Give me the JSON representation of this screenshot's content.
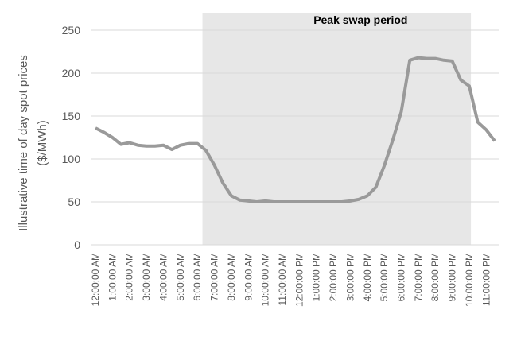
{
  "chart_data": {
    "type": "line",
    "ylabel": [
      "Illustrative time of day spot prices",
      "($/MWh)"
    ],
    "annotation": "Peak swap period",
    "categories": [
      "12:00:00 AM",
      null,
      "1:00:00 AM",
      null,
      "2:00:00 AM",
      null,
      "3:00:00 AM",
      null,
      "4:00:00 AM",
      null,
      "5:00:00 AM",
      null,
      "6:00:00 AM",
      null,
      "7:00:00 AM",
      null,
      "8:00:00 AM",
      null,
      "9:00:00 AM",
      null,
      "10:00:00 AM",
      null,
      "11:00:00 AM",
      null,
      "12:00:00 PM",
      null,
      "1:00:00 PM",
      null,
      "2:00:00 PM",
      null,
      "3:00:00 PM",
      null,
      "4:00:00 PM",
      null,
      "5:00:00 PM",
      null,
      "6:00:00 PM",
      null,
      "7:00:00 PM",
      null,
      "8:00:00 PM",
      null,
      "9:00:00 PM",
      null,
      "10:00:00 PM",
      null,
      "11:00:00 PM",
      null
    ],
    "values": [
      136,
      131,
      125,
      117,
      119,
      116,
      115,
      115,
      116,
      111,
      116,
      118,
      118,
      110,
      93,
      72,
      57,
      52,
      51,
      50,
      51,
      50,
      50,
      50,
      50,
      50,
      50,
      50,
      50,
      50,
      51,
      53,
      57,
      67,
      92,
      122,
      155,
      215,
      218,
      217,
      217,
      215,
      214,
      192,
      185,
      143,
      134,
      121
    ],
    "color": "#9a9a9a",
    "ylim": [
      0,
      250
    ],
    "yticks": [
      0,
      50,
      100,
      150,
      200,
      250
    ],
    "grid": true
  }
}
